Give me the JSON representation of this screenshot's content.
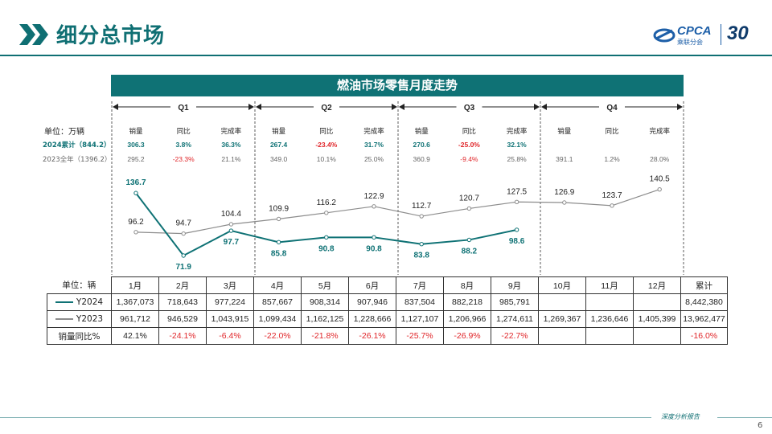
{
  "header": {
    "title": "细分总市场",
    "logo_brand": "CPCA",
    "logo_sub": "乘联分会",
    "logo_year": "30"
  },
  "chart_data": {
    "type": "line",
    "title": "燃油市场零售月度走势",
    "unit_label": "单位：万辆",
    "categories": [
      "1月",
      "2月",
      "3月",
      "4月",
      "5月",
      "6月",
      "7月",
      "8月",
      "9月",
      "10月",
      "11月",
      "12月"
    ],
    "series": [
      {
        "name": "Y2024",
        "color": "#0f7275",
        "values": [
          136.7,
          71.9,
          97.7,
          85.8,
          90.8,
          90.8,
          83.8,
          88.2,
          98.6,
          null,
          null,
          null
        ]
      },
      {
        "name": "Y2023",
        "color": "#8c8c8c",
        "values": [
          96.2,
          94.7,
          104.4,
          109.9,
          116.2,
          122.9,
          112.7,
          120.7,
          127.5,
          126.9,
          123.7,
          140.5
        ]
      }
    ],
    "quarters": [
      "Q1",
      "Q2",
      "Q3",
      "Q4"
    ],
    "quarter_table": {
      "col_labels": [
        "销量",
        "同比",
        "完成率"
      ],
      "row_2024": {
        "label": "2024累计（844.2）",
        "cells": [
          [
            "306.3",
            "3.8%",
            "36.3%"
          ],
          [
            "267.4",
            "-23.4%",
            "31.7%"
          ],
          [
            "270.6",
            "-25.0%",
            "32.1%"
          ],
          [
            "",
            "",
            ""
          ]
        ]
      },
      "row_2023": {
        "label": "2023全年（1396.2）",
        "cells": [
          [
            "295.2",
            "-23.3%",
            "21.1%"
          ],
          [
            "349.0",
            "10.1%",
            "25.0%"
          ],
          [
            "360.9",
            "-9.4%",
            "25.8%"
          ],
          [
            "391.1",
            "1.2%",
            "28.0%"
          ]
        ]
      }
    }
  },
  "table": {
    "unit_label": "单位：辆",
    "headers": [
      "1月",
      "2月",
      "3月",
      "4月",
      "5月",
      "6月",
      "7月",
      "8月",
      "9月",
      "10月",
      "11月",
      "12月",
      "累计"
    ],
    "rows": [
      {
        "label": "Y2024",
        "values": [
          "1,367,073",
          "718,643",
          "977,224",
          "857,667",
          "908,314",
          "907,946",
          "837,504",
          "882,218",
          "985,791",
          "",
          "",
          "",
          "8,442,380"
        ]
      },
      {
        "label": "Y2023",
        "values": [
          "961,712",
          "946,529",
          "1,043,915",
          "1,099,434",
          "1,162,125",
          "1,228,666",
          "1,127,107",
          "1,206,966",
          "1,274,611",
          "1,269,367",
          "1,236,646",
          "1,405,399",
          "13,962,477"
        ]
      },
      {
        "label": "销量同比%",
        "values": [
          "42.1%",
          "-24.1%",
          "-6.4%",
          "-22.0%",
          "-21.8%",
          "-26.1%",
          "-25.7%",
          "-26.9%",
          "-22.7%",
          "",
          "",
          "",
          "-16.0%"
        ]
      }
    ]
  },
  "footer": {
    "text": "深度分析报告",
    "page": "6"
  }
}
